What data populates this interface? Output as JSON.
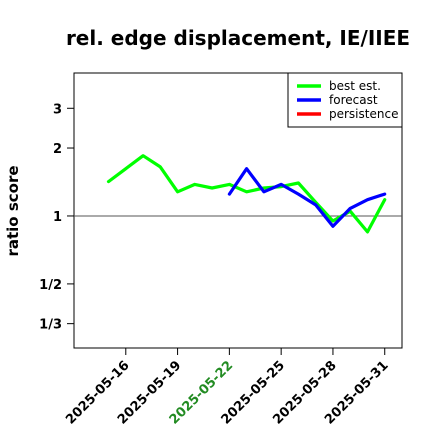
{
  "chart_data": {
    "type": "line",
    "title": "rel. edge displacement, IE/IIEE",
    "ylabel": "ratio score",
    "xlabel": "",
    "y_scale": "log",
    "ylim": [
      0.26,
      4.3
    ],
    "xlim": [
      "2025-05-13",
      "2025-06-01"
    ],
    "reference_line": 1,
    "y_ticks": [
      {
        "value": 3,
        "label": "3"
      },
      {
        "value": 2,
        "label": "2"
      },
      {
        "value": 1,
        "label": "1"
      },
      {
        "value": 0.5,
        "label": "1/2"
      },
      {
        "value": 0.3333,
        "label": "1/3"
      }
    ],
    "x_ticks": [
      {
        "date": "2025-05-16",
        "label": "2025-05-16",
        "color": "#000000"
      },
      {
        "date": "2025-05-19",
        "label": "2025-05-19",
        "color": "#000000"
      },
      {
        "date": "2025-05-22",
        "label": "2025-05-22",
        "color": "#228b22"
      },
      {
        "date": "2025-05-25",
        "label": "2025-05-25",
        "color": "#000000"
      },
      {
        "date": "2025-05-28",
        "label": "2025-05-28",
        "color": "#000000"
      },
      {
        "date": "2025-05-31",
        "label": "2025-05-31",
        "color": "#000000"
      }
    ],
    "legend": {
      "position": "top-right"
    },
    "grid": false,
    "series": [
      {
        "name": "best est.",
        "color": "#00ff00",
        "points": [
          [
            "2025-05-15",
            1.42
          ],
          [
            "2025-05-16",
            1.62
          ],
          [
            "2025-05-17",
            1.85
          ],
          [
            "2025-05-18",
            1.65
          ],
          [
            "2025-05-19",
            1.28
          ],
          [
            "2025-05-20",
            1.38
          ],
          [
            "2025-05-21",
            1.33
          ],
          [
            "2025-05-22",
            1.38
          ],
          [
            "2025-05-23",
            1.28
          ],
          [
            "2025-05-24",
            1.33
          ],
          [
            "2025-05-25",
            1.35
          ],
          [
            "2025-05-26",
            1.4
          ],
          [
            "2025-05-27",
            1.15
          ],
          [
            "2025-05-28",
            0.95
          ],
          [
            "2025-05-29",
            1.05
          ],
          [
            "2025-05-30",
            0.85
          ],
          [
            "2025-05-31",
            1.18
          ]
        ]
      },
      {
        "name": "forecast",
        "color": "#0000ff",
        "points": [
          [
            "2025-05-22",
            1.25
          ],
          [
            "2025-05-23",
            1.62
          ],
          [
            "2025-05-24",
            1.28
          ],
          [
            "2025-05-25",
            1.38
          ],
          [
            "2025-05-26",
            1.25
          ],
          [
            "2025-05-27",
            1.12
          ],
          [
            "2025-05-28",
            0.9
          ],
          [
            "2025-05-29",
            1.08
          ],
          [
            "2025-05-30",
            1.18
          ],
          [
            "2025-05-31",
            1.25
          ]
        ]
      },
      {
        "name": "persistence",
        "color": "#ff0000",
        "points": []
      }
    ]
  }
}
